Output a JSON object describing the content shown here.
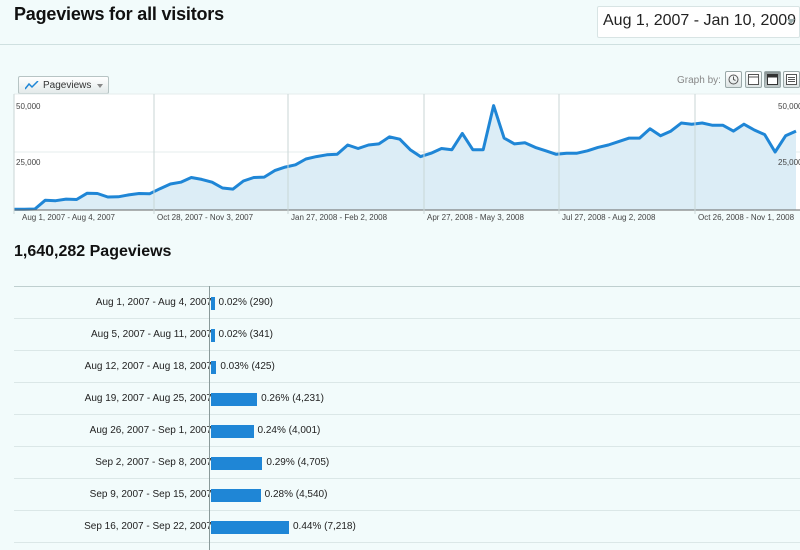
{
  "header": {
    "title": "Pageviews for all visitors",
    "date_range": "Aug 1, 2007 - Jan 10, 2009"
  },
  "graph_controls": {
    "metric_label": "Pageviews",
    "graph_by_label": "Graph by:",
    "buttons": [
      "motion-chart",
      "day",
      "week",
      "month"
    ],
    "active": "week"
  },
  "chart_data": {
    "type": "area",
    "title": "Pageviews",
    "ylim": [
      0,
      50000
    ],
    "y_ticks": [
      "50,000",
      "25,000"
    ],
    "x_labels": [
      "Aug 1, 2007 - Aug 4, 2007",
      "Oct 28, 2007 - Nov 3, 2007",
      "Jan 27, 2008 - Feb 2, 2008",
      "Apr 27, 2008 - May 3, 2008",
      "Jul 27, 2008 - Aug 2, 2008",
      "Oct 26, 2008 - Nov 1, 2008"
    ],
    "values": [
      290,
      341,
      425,
      4231,
      4001,
      4705,
      4540,
      7218,
      7100,
      5600,
      5700,
      6500,
      7100,
      7000,
      9200,
      11200,
      12000,
      14000,
      13200,
      12000,
      9500,
      9000,
      12500,
      14000,
      14200,
      17000,
      18500,
      19500,
      22000,
      23000,
      23800,
      24000,
      28000,
      26500,
      28000,
      28500,
      31500,
      30500,
      26000,
      23000,
      24500,
      26500,
      26000,
      33000,
      26000,
      26000,
      45000,
      31000,
      28500,
      29000,
      27000,
      25500,
      24000,
      24500,
      24500,
      25500,
      27000,
      28000,
      29500,
      31000,
      31000,
      35000,
      32000,
      34000,
      37500,
      37000,
      37500,
      36500,
      36500,
      34000,
      37000,
      34500,
      32500,
      25000,
      32000,
      34000
    ],
    "color": "#1f86d6",
    "fill": "#dcedf6"
  },
  "summary": {
    "total": "1,640,282 Pageviews"
  },
  "table": {
    "rows": [
      {
        "date": "Aug 1, 2007 - Aug 4, 2007",
        "pct": 0.02,
        "value": "0.02% (290)"
      },
      {
        "date": "Aug 5, 2007 - Aug 11, 2007",
        "pct": 0.02,
        "value": "0.02% (341)"
      },
      {
        "date": "Aug 12, 2007 - Aug 18, 2007",
        "pct": 0.03,
        "value": "0.03% (425)"
      },
      {
        "date": "Aug 19, 2007 - Aug 25, 2007",
        "pct": 0.26,
        "value": "0.26% (4,231)"
      },
      {
        "date": "Aug 26, 2007 - Sep 1, 2007",
        "pct": 0.24,
        "value": "0.24% (4,001)"
      },
      {
        "date": "Sep 2, 2007 - Sep 8, 2007",
        "pct": 0.29,
        "value": "0.29% (4,705)"
      },
      {
        "date": "Sep 9, 2007 - Sep 15, 2007",
        "pct": 0.28,
        "value": "0.28% (4,540)"
      },
      {
        "date": "Sep 16, 2007 - Sep 22, 2007",
        "pct": 0.44,
        "value": "0.44% (7,218)"
      }
    ]
  }
}
